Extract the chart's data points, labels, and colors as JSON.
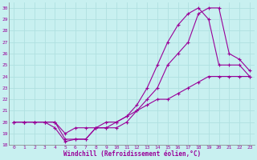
{
  "xlabel": "Windchill (Refroidissement éolien,°C)",
  "bg_color": "#c8f0f0",
  "grid_color": "#b0e0e0",
  "line_color": "#990099",
  "xlim": [
    -0.5,
    23.5
  ],
  "ylim": [
    18,
    30.5
  ],
  "xticks": [
    0,
    1,
    2,
    3,
    4,
    5,
    6,
    7,
    8,
    9,
    10,
    11,
    12,
    13,
    14,
    15,
    16,
    17,
    18,
    19,
    20,
    21,
    22,
    23
  ],
  "yticks": [
    18,
    19,
    20,
    21,
    22,
    23,
    24,
    25,
    26,
    27,
    28,
    29,
    30
  ],
  "line1_x": [
    0,
    1,
    2,
    3,
    4,
    5,
    6,
    7,
    8,
    9,
    10,
    11,
    12,
    13,
    14,
    15,
    16,
    17,
    18,
    19,
    20,
    21,
    22,
    23
  ],
  "line1_y": [
    20,
    20,
    20,
    20,
    19.5,
    18.3,
    18.5,
    18.5,
    19.5,
    19.5,
    20,
    20.5,
    21.5,
    23,
    25,
    27,
    28.5,
    29.5,
    30,
    29,
    25,
    25,
    25,
    24
  ],
  "line2_x": [
    0,
    1,
    2,
    3,
    4,
    5,
    6,
    7,
    8,
    9,
    10,
    11,
    12,
    13,
    14,
    15,
    16,
    17,
    18,
    19,
    20,
    21,
    22,
    23
  ],
  "line2_y": [
    20,
    20,
    20,
    20,
    20,
    18.5,
    18.5,
    18.5,
    19.5,
    19.5,
    19.5,
    20,
    21,
    22,
    23,
    25,
    26,
    27,
    29.5,
    30,
    30,
    26,
    25.5,
    24.5
  ],
  "line3_x": [
    0,
    1,
    2,
    3,
    4,
    5,
    6,
    7,
    8,
    9,
    10,
    11,
    12,
    13,
    14,
    15,
    16,
    17,
    18,
    19,
    20,
    21,
    22,
    23
  ],
  "line3_y": [
    20,
    20,
    20,
    20,
    20,
    19,
    19.5,
    19.5,
    19.5,
    20,
    20,
    20.5,
    21,
    21.5,
    22,
    22,
    22.5,
    23,
    23.5,
    24,
    24,
    24,
    24,
    24
  ]
}
